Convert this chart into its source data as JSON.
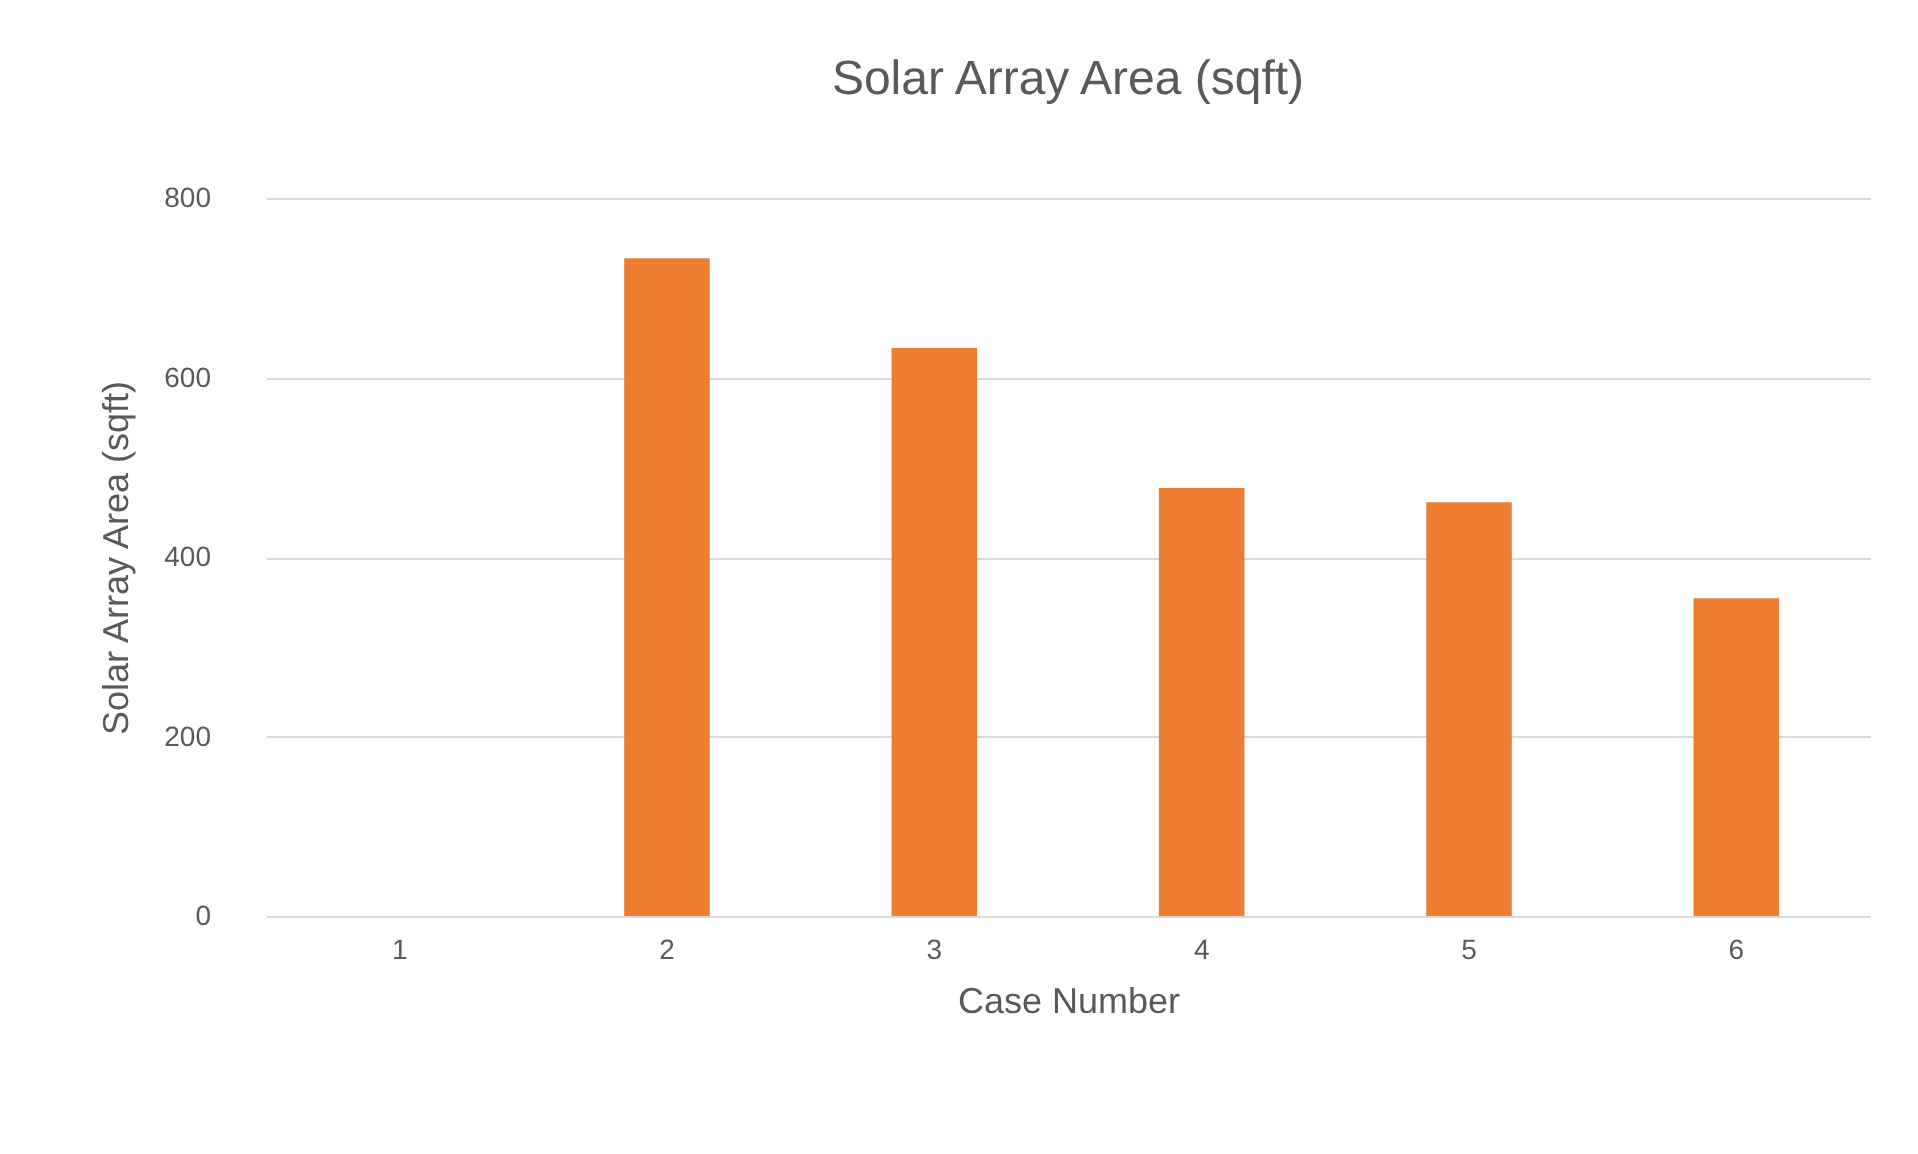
{
  "chart_data": {
    "type": "bar",
    "title": "Solar Array Area (sqft)",
    "xlabel": "Case Number",
    "ylabel": "Solar Array Area (sqft)",
    "categories": [
      "1",
      "2",
      "3",
      "4",
      "5",
      "6"
    ],
    "values": [
      0,
      733,
      633,
      477,
      461,
      354
    ],
    "color": "#ed7d31",
    "ylim": [
      0,
      800
    ],
    "yticks": [
      0,
      200,
      400,
      600,
      800
    ],
    "grid": "y"
  }
}
